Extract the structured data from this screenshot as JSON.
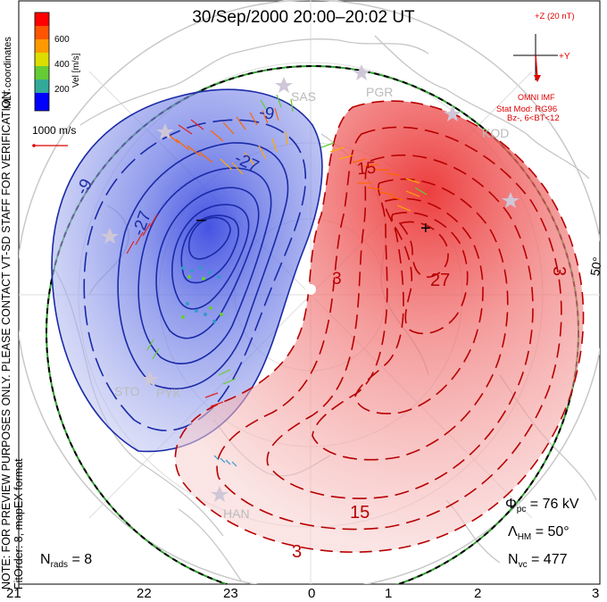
{
  "title": "30/Sep/2000 20:00–20:02 UT",
  "side_note_line1": "NOTE: FOR PREVIEW PURPOSES ONLY. PLEASE CONTACT VT-SD STAFF FOR VERIFICATION.",
  "side_note_line2": "FitOrder: 8, mapEX format",
  "mlt_label": "MLT coordinates",
  "colorbar": {
    "unit_label": "Vel [m/s]",
    "ticks": [
      "600",
      "400",
      "200"
    ],
    "colors": [
      "#ff0000",
      "#ff6600",
      "#ffaa00",
      "#dddd00",
      "#66cc33",
      "#3399cc",
      "#0000ff"
    ]
  },
  "vector_scale_label": "1000 m/s",
  "imf": {
    "z_label": "+Z (20 nT)",
    "y_label": "+Y",
    "source": "OMNI IMF",
    "stat_mod": "Stat Mod: RG96",
    "condition": "Bz-, 6<BT<12"
  },
  "stations": [
    "SAS",
    "PGR",
    "KOD",
    "STO",
    "PYK",
    "HAN"
  ],
  "contour_labels": [
    "-9",
    "-9",
    "-27",
    "-27",
    "15",
    "3",
    "27",
    "15",
    "3",
    "3"
  ],
  "extrema": {
    "min_marker": "−",
    "max_marker": "+"
  },
  "latitude_label": "50°",
  "stats": {
    "phi_pc_symbol": "Φ",
    "phi_pc_sub": "pc",
    "phi_pc_value": "= 76 kV",
    "lambda_symbol": "Λ",
    "lambda_sub": "HM",
    "lambda_value": "= 50°",
    "nvc_symbol": "N",
    "nvc_sub": "vc",
    "nvc_value": "= 477",
    "nrads_symbol": "N",
    "nrads_sub": "rads",
    "nrads_value": "= 8"
  },
  "mlt_ticks": [
    "21",
    "22",
    "23",
    "0",
    "1",
    "2",
    "3"
  ],
  "colors": {
    "negative_cell": "#2a3bd0",
    "positive_cell": "#e03030",
    "boundary": "#2e9f2e"
  }
}
